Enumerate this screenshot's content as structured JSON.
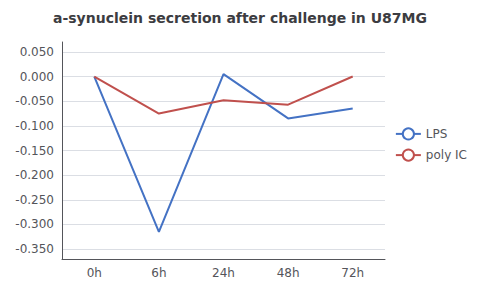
{
  "chart_data": {
    "type": "line",
    "title": "a-synuclein secretion after challenge in U87MG",
    "categories": [
      "0h",
      "6h",
      "24h",
      "48h",
      "72h"
    ],
    "series": [
      {
        "name": "LPS",
        "color": "#4472C4",
        "values": [
          0.0,
          -0.315,
          0.005,
          -0.085,
          -0.065
        ]
      },
      {
        "name": "poly IC",
        "color": "#C0504D",
        "values": [
          0.0,
          -0.075,
          -0.048,
          -0.057,
          0.0
        ]
      }
    ],
    "ylim": [
      -0.37,
      0.07
    ],
    "yticks": [
      {
        "value": 0.05,
        "label": "0.050"
      },
      {
        "value": 0.0,
        "label": "0.000"
      },
      {
        "value": -0.05,
        "label": "-0.050"
      },
      {
        "value": -0.1,
        "label": "-0.100"
      },
      {
        "value": -0.15,
        "label": "-0.150"
      },
      {
        "value": -0.2,
        "label": "-0.200"
      },
      {
        "value": -0.25,
        "label": "-0.250"
      },
      {
        "value": -0.3,
        "label": "-0.300"
      },
      {
        "value": -0.35,
        "label": "-0.350"
      }
    ],
    "grid": true,
    "legend": "right"
  }
}
